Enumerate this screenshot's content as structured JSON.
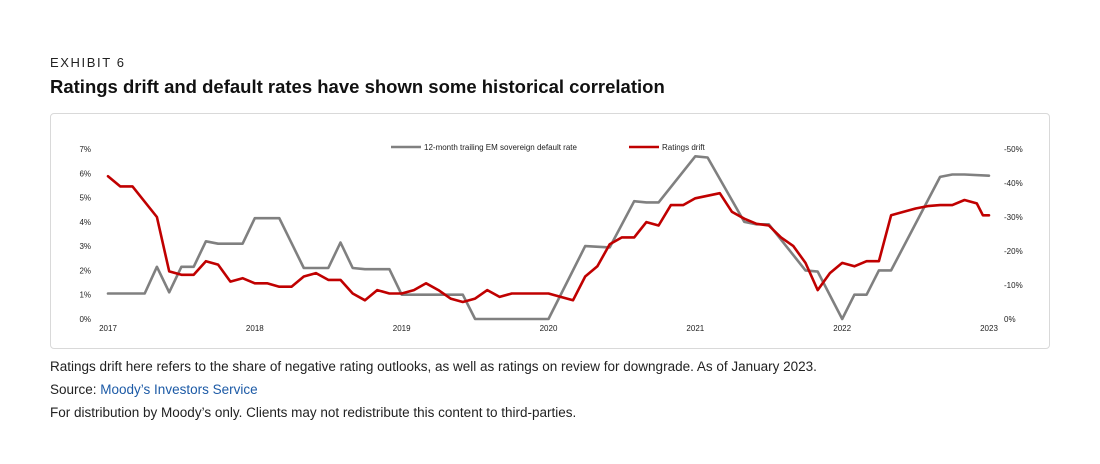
{
  "header": {
    "eyebrow": "EXHIBIT 6",
    "title": "Ratings drift and default rates have shown some historical correlation"
  },
  "footer": {
    "note": "Ratings drift here refers to the share of negative rating outlooks, as well as ratings on review for downgrade. As of January 2023.",
    "source_label": "Source: ",
    "source_link": "Moody’s Investors Service",
    "distribution": "For distribution by Moody’s only. Clients may not redistribute this content to third-parties."
  },
  "chart_data": {
    "type": "line",
    "x_ticks": [
      "2017",
      "2018",
      "2019",
      "2020",
      "2021",
      "2022",
      "2023"
    ],
    "xlim": [
      "2017-01",
      "2023-01"
    ],
    "y_left": {
      "ticks": [
        "0%",
        "1%",
        "2%",
        "3%",
        "4%",
        "5%",
        "6%",
        "7%"
      ],
      "ylim": [
        0,
        7
      ]
    },
    "y_right": {
      "ticks": [
        "0%",
        "-10%",
        "-20%",
        "-30%",
        "-40%",
        "-50%"
      ],
      "ylim": [
        0,
        -50
      ]
    },
    "legend_placement": "top-center",
    "grid": false,
    "series": [
      {
        "name": "12-month trailing EM sovereign default rate",
        "axis": "left",
        "color": "#808080",
        "points": [
          [
            "2017-01",
            1.05
          ],
          [
            "2017-04",
            1.05
          ],
          [
            "2017-05",
            2.15
          ],
          [
            "2017-06",
            1.1
          ],
          [
            "2017-07",
            2.15
          ],
          [
            "2017-08",
            2.15
          ],
          [
            "2017-09",
            3.2
          ],
          [
            "2017-10",
            3.1
          ],
          [
            "2017-12",
            3.1
          ],
          [
            "2018-01",
            4.15
          ],
          [
            "2018-03",
            4.15
          ],
          [
            "2018-05",
            2.1
          ],
          [
            "2018-07",
            2.1
          ],
          [
            "2018-08",
            3.15
          ],
          [
            "2018-09",
            2.1
          ],
          [
            "2018-10",
            2.05
          ],
          [
            "2018-12",
            2.05
          ],
          [
            "2019-01",
            1.0
          ],
          [
            "2019-06",
            1.0
          ],
          [
            "2019-07",
            0.0
          ],
          [
            "2020-01",
            0.0
          ],
          [
            "2020-04",
            3.0
          ],
          [
            "2020-06",
            2.95
          ],
          [
            "2020-08",
            4.85
          ],
          [
            "2020-09",
            4.8
          ],
          [
            "2020-10",
            4.8
          ],
          [
            "2021-01",
            6.7
          ],
          [
            "2021-02",
            6.65
          ],
          [
            "2021-05",
            4.0
          ],
          [
            "2021-06",
            3.9
          ],
          [
            "2021-07",
            3.9
          ],
          [
            "2021-10",
            2.0
          ],
          [
            "2021-11",
            1.95
          ],
          [
            "2022-01",
            0.0
          ],
          [
            "2022-02",
            1.0
          ],
          [
            "2022-03",
            1.0
          ],
          [
            "2022-04",
            2.0
          ],
          [
            "2022-05",
            2.0
          ],
          [
            "2022-09",
            5.85
          ],
          [
            "2022-10",
            5.95
          ],
          [
            "2022-11",
            5.95
          ],
          [
            "2023-01",
            5.9
          ]
        ]
      },
      {
        "name": "Ratings drift",
        "axis": "right",
        "color": "#c00000",
        "points": [
          [
            "2017-01",
            -42
          ],
          [
            "2017-02",
            -39
          ],
          [
            "2017-03",
            -39
          ],
          [
            "2017-05",
            -30
          ],
          [
            "2017-06",
            -14
          ],
          [
            "2017-07",
            -13
          ],
          [
            "2017-08",
            -13
          ],
          [
            "2017-09",
            -17
          ],
          [
            "2017-10",
            -16
          ],
          [
            "2017-11",
            -11
          ],
          [
            "2017-12",
            -12
          ],
          [
            "2018-01",
            -10.5
          ],
          [
            "2018-02",
            -10.5
          ],
          [
            "2018-03",
            -9.5
          ],
          [
            "2018-04",
            -9.5
          ],
          [
            "2018-05",
            -12.5
          ],
          [
            "2018-06",
            -13.5
          ],
          [
            "2018-07",
            -11.5
          ],
          [
            "2018-08",
            -11.5
          ],
          [
            "2018-09",
            -7.5
          ],
          [
            "2018-10",
            -5.5
          ],
          [
            "2018-11",
            -8.5
          ],
          [
            "2018-12",
            -7.5
          ],
          [
            "2019-01",
            -7.5
          ],
          [
            "2019-02",
            -8.5
          ],
          [
            "2019-03",
            -10.5
          ],
          [
            "2019-04",
            -8.5
          ],
          [
            "2019-05",
            -6
          ],
          [
            "2019-06",
            -5
          ],
          [
            "2019-07",
            -6
          ],
          [
            "2019-08",
            -8.5
          ],
          [
            "2019-09",
            -6.5
          ],
          [
            "2019-10",
            -7.5
          ],
          [
            "2020-01",
            -7.5
          ],
          [
            "2020-02",
            -6.5
          ],
          [
            "2020-03",
            -5.5
          ],
          [
            "2020-04",
            -12.5
          ],
          [
            "2020-05",
            -15.5
          ],
          [
            "2020-06",
            -22
          ],
          [
            "2020-07",
            -24
          ],
          [
            "2020-08",
            -24
          ],
          [
            "2020-09",
            -28.5
          ],
          [
            "2020-10",
            -27.5
          ],
          [
            "2020-11",
            -33.5
          ],
          [
            "2020-12",
            -33.5
          ],
          [
            "2021-01",
            -35.5
          ],
          [
            "2021-03",
            -37
          ],
          [
            "2021-04",
            -31.5
          ],
          [
            "2021-05",
            -29.5
          ],
          [
            "2021-06",
            -28
          ],
          [
            "2021-07",
            -27.5
          ],
          [
            "2021-08",
            -24
          ],
          [
            "2021-09",
            -21.5
          ],
          [
            "2021-10",
            -16.5
          ],
          [
            "2021-11",
            -8.5
          ],
          [
            "2021-12",
            -13.5
          ],
          [
            "2022-01",
            -16.5
          ],
          [
            "2022-02",
            -15.5
          ],
          [
            "2022-03",
            -17
          ],
          [
            "2022-04",
            -17
          ],
          [
            "2022-05",
            -30.5
          ],
          [
            "2022-06",
            -31.5
          ],
          [
            "2022-07",
            -32.5
          ],
          [
            "2022-08",
            -33.2
          ],
          [
            "2022-09",
            -33.5
          ],
          [
            "2022-10",
            -33.5
          ],
          [
            "2022-11",
            -35
          ],
          [
            "2022-12",
            -34
          ],
          [
            "2022-12b",
            -30.5
          ],
          [
            "2023-01",
            -30.5
          ]
        ]
      }
    ]
  }
}
